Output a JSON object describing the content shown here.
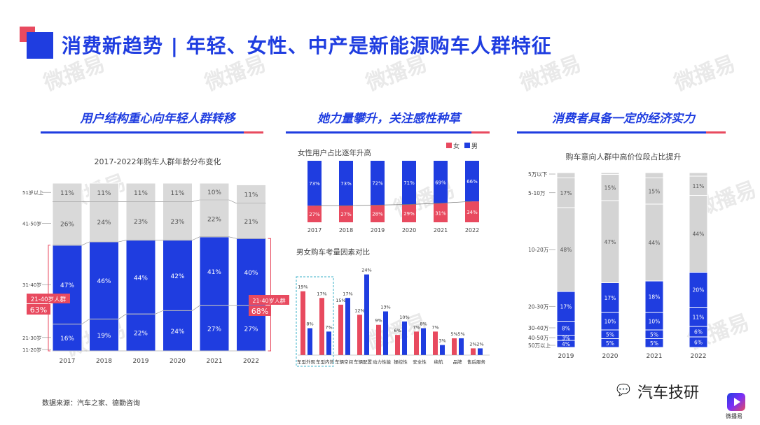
{
  "title": "消费新趋势 | 年轻、女性、中产是新能源购车人群特征",
  "panels": {
    "p1": "用户结构重心向年轻人群转移",
    "p2": "她力量攀升，关注感性种草",
    "p3": "消费者具备一定的经济实力"
  },
  "watermark": "微播易",
  "source": "数据来源：汽车之家、德勤咨询",
  "brand": {
    "name": "汽车技研",
    "sub": "微播易",
    "wechat_icon": "wechat-icon"
  },
  "colors": {
    "blue": "#1f3de0",
    "red": "#e84a5f",
    "gray": "#d4d4d4"
  },
  "chart_data": [
    {
      "type": "bar",
      "stacked": true,
      "title": "2017-2022年购车人群年龄分布变化",
      "categories": [
        "2017",
        "2018",
        "2019",
        "2020",
        "2021",
        "2022"
      ],
      "series": [
        {
          "name": "11-20岁",
          "values": [
            0,
            0,
            0,
            0,
            0,
            0
          ],
          "labels": [
            "",
            "",
            "",
            "",
            "",
            ""
          ]
        },
        {
          "name": "21-30岁",
          "values": [
            16,
            19,
            22,
            24,
            27,
            27
          ],
          "labels": [
            "16%",
            "19%",
            "22%",
            "24%",
            "27%",
            "27%"
          ]
        },
        {
          "name": "31-40岁",
          "values": [
            47,
            46,
            44,
            42,
            41,
            40
          ],
          "labels": [
            "47%",
            "46%",
            "44%",
            "42%",
            "41%",
            "40%"
          ]
        },
        {
          "name": "41-50岁",
          "values": [
            26,
            24,
            23,
            23,
            22,
            21
          ],
          "labels": [
            "26%",
            "24%",
            "23%",
            "23%",
            "22%",
            "21%"
          ]
        },
        {
          "name": "51岁以上",
          "values": [
            11,
            11,
            11,
            11,
            10,
            11
          ],
          "labels": [
            "11%",
            "11%",
            "11%",
            "11%",
            "10%",
            "11%"
          ]
        }
      ],
      "callouts": [
        {
          "label": "21-40岁人群",
          "value": "63%"
        },
        {
          "label": "21-40岁人群",
          "value": "68%"
        }
      ],
      "ylim": [
        0,
        100
      ]
    },
    {
      "type": "bar",
      "stacked": true,
      "title": "女性用户占比逐年升高",
      "legend": [
        "女",
        "男"
      ],
      "legend_position": "top-right",
      "categories": [
        "2017",
        "2018",
        "2019",
        "2020",
        "2021",
        "2022"
      ],
      "series": [
        {
          "name": "女",
          "values": [
            27,
            27,
            28,
            29,
            31,
            34
          ],
          "labels": [
            "27%",
            "27%",
            "28%",
            "29%",
            "31%",
            "34%"
          ]
        },
        {
          "name": "男",
          "values": [
            73,
            73,
            72,
            71,
            69,
            66
          ],
          "labels": [
            "73%",
            "73%",
            "72%",
            "71%",
            "69%",
            "66%"
          ]
        }
      ],
      "trend_line": true,
      "ylim": [
        0,
        100
      ]
    },
    {
      "type": "bar",
      "title": "男女购车考量因素对比",
      "categories": [
        "车型外观",
        "车型内饰",
        "车辆空间",
        "车辆配置",
        "动力性能",
        "操控性",
        "安全性",
        "续航",
        "品牌",
        "售后服务"
      ],
      "series": [
        {
          "name": "女",
          "values": [
            19,
            17,
            15,
            12,
            9,
            6,
            7,
            7,
            5,
            2
          ],
          "labels": [
            "19%",
            "17%",
            "15%",
            "12%",
            "9%",
            "6%",
            "7%",
            "7%",
            "5%",
            "2%"
          ]
        },
        {
          "name": "男",
          "values": [
            8,
            7,
            17,
            24,
            13,
            10,
            8,
            3,
            5,
            2
          ],
          "labels": [
            "8%",
            "7%",
            "17%",
            "24%",
            "13%",
            "10%",
            "8%",
            "3%",
            "5%",
            "2%"
          ]
        }
      ],
      "highlight_categories": [
        "车型外观",
        "车型内饰"
      ],
      "ylim": [
        0,
        26
      ]
    },
    {
      "type": "bar",
      "stacked": true,
      "title": "购车意向人群中高价位段占比提升",
      "categories": [
        "2019",
        "2020",
        "2021",
        "2022"
      ],
      "series": [
        {
          "name": "50万以上",
          "values": [
            4,
            5,
            5,
            6
          ],
          "labels": [
            "4%",
            "5%",
            "5%",
            "6%"
          ]
        },
        {
          "name": "40-50万",
          "values": [
            3,
            5,
            5,
            6
          ],
          "labels": [
            "3%",
            "5%",
            "5%",
            "6%"
          ]
        },
        {
          "name": "30-40万",
          "values": [
            8,
            10,
            10,
            11
          ],
          "labels": [
            "8%",
            "10%",
            "10%",
            "11%"
          ]
        },
        {
          "name": "20-30万",
          "values": [
            17,
            17,
            18,
            20
          ],
          "labels": [
            "17%",
            "17%",
            "18%",
            "20%"
          ]
        },
        {
          "name": "10-20万",
          "values": [
            48,
            47,
            44,
            44
          ],
          "labels": [
            "48%",
            "47%",
            "44%",
            "44%"
          ]
        },
        {
          "name": "5-10万",
          "values": [
            17,
            15,
            15,
            11
          ],
          "labels": [
            "17%",
            "15%",
            "15%",
            "11%"
          ]
        },
        {
          "name": "5万以下",
          "values": [
            3,
            1,
            3,
            2
          ],
          "labels": [
            "",
            "",
            "",
            ""
          ]
        }
      ],
      "ylim": [
        0,
        100
      ]
    }
  ]
}
